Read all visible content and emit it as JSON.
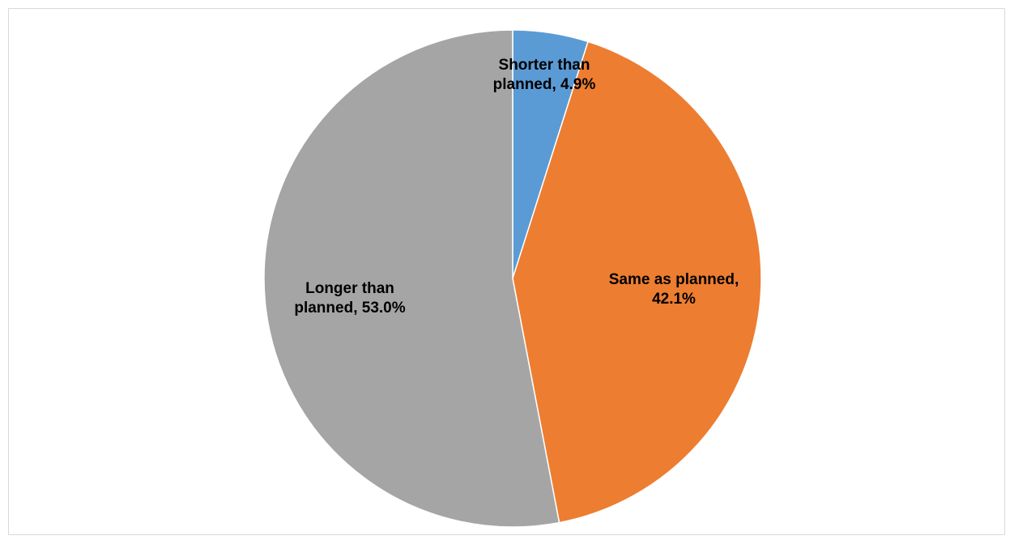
{
  "chart_data": {
    "type": "pie",
    "title": "",
    "start_angle_deg": 0,
    "direction": "clockwise",
    "legend": "none",
    "slices": [
      {
        "category": "Shorter than planned",
        "value": 4.9,
        "label_lines": [
          "Shorter than",
          "planned, 4.9%"
        ],
        "color": "#5B9BD5"
      },
      {
        "category": "Same as planned",
        "value": 42.1,
        "label_lines": [
          "Same as planned,",
          "42.1%"
        ],
        "color": "#ED7D31"
      },
      {
        "category": "Longer than planned",
        "value": 53.0,
        "label_lines": [
          "Longer than",
          "planned, 53.0%"
        ],
        "color": "#A5A5A5"
      }
    ]
  }
}
